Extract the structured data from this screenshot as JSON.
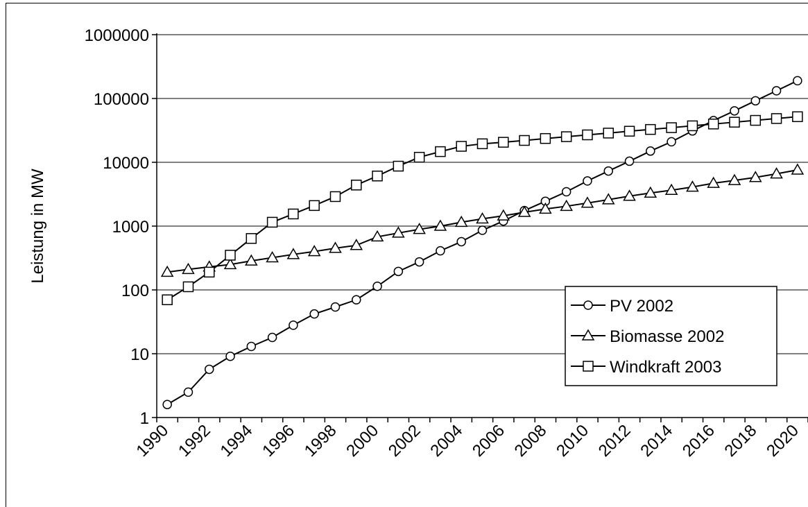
{
  "chart_data": {
    "type": "line",
    "title": "",
    "xlabel": "",
    "ylabel": "Leistung in MW",
    "yscale": "log",
    "ylim": [
      1,
      1000000
    ],
    "xlim": [
      1990,
      2021
    ],
    "grid": "horizontal",
    "legend_position": "bottom-right inside plot",
    "x_tick_labels": [
      "1990",
      "1992",
      "1994",
      "1996",
      "1998",
      "2000",
      "2002",
      "2004",
      "2006",
      "2008",
      "2010",
      "2012",
      "2014",
      "2016",
      "2018",
      "2020"
    ],
    "y_tick_labels": [
      "1",
      "10",
      "100",
      "1000",
      "10000",
      "100000",
      "1000000"
    ],
    "x": [
      1990.5,
      1991.5,
      1992.5,
      1993.5,
      1994.5,
      1995.5,
      1996.5,
      1997.5,
      1998.5,
      1999.5,
      2000.5,
      2001.5,
      2002.5,
      2003.5,
      2004.5,
      2005.5,
      2006.5,
      2007.5,
      2008.5,
      2009.5,
      2010.5,
      2011.5,
      2012.5,
      2013.5,
      2014.5,
      2015.5,
      2016.5,
      2017.5,
      2018.5,
      2019.5,
      2020.5
    ],
    "series": [
      {
        "name": "PV 2002",
        "marker": "circle",
        "values": [
          1.6,
          2.5,
          5.7,
          9.1,
          13,
          18,
          28,
          42,
          54,
          70,
          114,
          195,
          275,
          410,
          570,
          860,
          1200,
          1750,
          2450,
          3450,
          5100,
          7300,
          10400,
          15000,
          21000,
          31000,
          45000,
          64000,
          92000,
          132000,
          190000
        ]
      },
      {
        "name": "Biomasse 2002",
        "marker": "triangle",
        "values": [
          190,
          210,
          230,
          250,
          285,
          320,
          360,
          400,
          450,
          500,
          680,
          780,
          890,
          1000,
          1150,
          1300,
          1450,
          1650,
          1850,
          2050,
          2300,
          2600,
          2950,
          3300,
          3650,
          4100,
          4700,
          5200,
          5800,
          6600,
          7600
        ]
      },
      {
        "name": "Windkraft 2003",
        "marker": "square",
        "values": [
          70,
          112,
          190,
          350,
          640,
          1150,
          1550,
          2100,
          2900,
          4400,
          6100,
          8700,
          12000,
          14700,
          17800,
          19500,
          20600,
          22000,
          23600,
          25200,
          26900,
          28700,
          30700,
          32700,
          34900,
          37300,
          39800,
          42500,
          45400,
          48500,
          51800
        ]
      }
    ]
  }
}
